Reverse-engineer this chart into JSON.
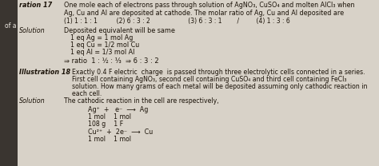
{
  "bg_color": "#c8c4bc",
  "page_bg": "#d8d2c8",
  "margin_bg": "#3a3530",
  "text_color": "#1a1208",
  "label_color": "#f0ece4",
  "figsize": [
    4.74,
    2.08
  ],
  "dpi": 100,
  "title_label": "ration 17",
  "title_text": "One mole each of electrons pass through solution of AgNO₃, CuSO₄ and molten AlCl₃ when",
  "line2": "Ag, Cu and Al are deposited at cathode. The molar ratio of Ag, Cu and Al deposited are",
  "options": "(1) 1 : 1 : 1          (2) 6 : 3 : 2                    (3) 6 : 3 : 1        /         (4) 1 : 3 : 6",
  "solution_label": "Solution",
  "sol_line1": "Deposited equivalent will be same",
  "sol_line2": "1 eq Ag = 1 mol Ag",
  "sol_line3": "1 eq Cu = 1/2 mol Cu",
  "sol_line4": "1 eq Al = 1/3 mol Al",
  "sol_line5": "⇒ ratio  1 : ½ : ⅓  ⇒ 6 : 3 : 2",
  "illus18_label": "Illustration 18",
  "illus18_text1": "Exactly 0.4 F electric  charge  is passed through three electrolytic cells connected in a series.",
  "illus18_text2": "First cell containing AgNO₃, second cell containing CuSO₄ and third cell containing FeCl₃",
  "illus18_text3": "solution. How many grams of each metal will be deposited assuming only cathodic reaction in",
  "illus18_text4": "each cell.",
  "sol18_label": "Solution",
  "sol18_line1": "The cathodic reaction in the cell are respectively,",
  "sol18_line2": "Ag⁺  +   e⁻  ⟶  Ag",
  "sol18_line3": "1 mol    1 mol",
  "sol18_line4": "108 g    1 F",
  "sol18_line5": "Cu²⁺  +  2e⁻  ⟶  Cu",
  "sol18_line6": "1 mol    1 mol",
  "ofa_text": "of a"
}
